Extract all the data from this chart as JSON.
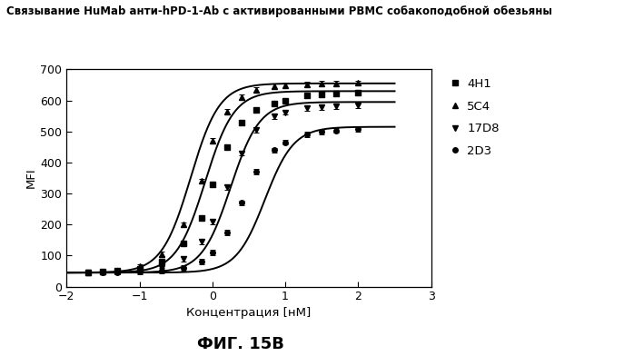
{
  "title": "Связывание HuMab анти-hPD-1-Ab с активированными PBMC собакоподобной обезьяны",
  "xlabel": "Концентрация [нМ]",
  "ylabel": "MFI",
  "subtitle": "ФИГ. 15B",
  "xlim": [
    -2,
    3
  ],
  "ylim": [
    0,
    700
  ],
  "xticks": [
    -2,
    -1,
    0,
    1,
    2,
    3
  ],
  "yticks": [
    0,
    100,
    200,
    300,
    400,
    500,
    600,
    700
  ],
  "series": [
    {
      "label": "4H1",
      "marker": "s",
      "color": "#000000",
      "bottom": 45,
      "top": 630,
      "ec50": -0.1,
      "hill": 2.2
    },
    {
      "label": "5C4",
      "marker": "^",
      "color": "#000000",
      "bottom": 45,
      "top": 655,
      "ec50": -0.3,
      "hill": 2.2
    },
    {
      "label": "17D8",
      "marker": "v",
      "color": "#000000",
      "bottom": 45,
      "top": 595,
      "ec50": 0.25,
      "hill": 2.2
    },
    {
      "label": "2D3",
      "marker": "o",
      "color": "#000000",
      "bottom": 45,
      "top": 515,
      "ec50": 0.72,
      "hill": 2.2
    }
  ],
  "data_points": {
    "4H1": [
      [
        -1.7,
        47
      ],
      [
        -1.5,
        48
      ],
      [
        -1.3,
        50
      ],
      [
        -1.0,
        58
      ],
      [
        -0.7,
        80
      ],
      [
        -0.4,
        140
      ],
      [
        -0.15,
        220
      ],
      [
        0.0,
        330
      ],
      [
        0.2,
        450
      ],
      [
        0.4,
        530
      ],
      [
        0.6,
        570
      ],
      [
        0.85,
        590
      ],
      [
        1.0,
        600
      ],
      [
        1.3,
        615
      ],
      [
        1.5,
        620
      ],
      [
        1.7,
        622
      ],
      [
        2.0,
        625
      ]
    ],
    "5C4": [
      [
        -1.7,
        47
      ],
      [
        -1.5,
        48
      ],
      [
        -1.3,
        52
      ],
      [
        -1.0,
        65
      ],
      [
        -0.7,
        105
      ],
      [
        -0.4,
        200
      ],
      [
        -0.15,
        340
      ],
      [
        0.0,
        470
      ],
      [
        0.2,
        565
      ],
      [
        0.4,
        610
      ],
      [
        0.6,
        635
      ],
      [
        0.85,
        645
      ],
      [
        1.0,
        648
      ],
      [
        1.3,
        652
      ],
      [
        1.5,
        654
      ],
      [
        1.7,
        655
      ],
      [
        2.0,
        656
      ]
    ],
    "17D8": [
      [
        -1.7,
        47
      ],
      [
        -1.5,
        47
      ],
      [
        -1.3,
        48
      ],
      [
        -1.0,
        51
      ],
      [
        -0.7,
        60
      ],
      [
        -0.4,
        90
      ],
      [
        -0.15,
        145
      ],
      [
        0.0,
        210
      ],
      [
        0.2,
        320
      ],
      [
        0.4,
        430
      ],
      [
        0.6,
        505
      ],
      [
        0.85,
        548
      ],
      [
        1.0,
        562
      ],
      [
        1.3,
        574
      ],
      [
        1.5,
        578
      ],
      [
        1.7,
        580
      ],
      [
        2.0,
        583
      ]
    ],
    "2D3": [
      [
        -1.7,
        47
      ],
      [
        -1.5,
        47
      ],
      [
        -1.3,
        47
      ],
      [
        -1.0,
        48
      ],
      [
        -0.7,
        51
      ],
      [
        -0.4,
        60
      ],
      [
        -0.15,
        80
      ],
      [
        0.0,
        110
      ],
      [
        0.2,
        175
      ],
      [
        0.4,
        270
      ],
      [
        0.6,
        370
      ],
      [
        0.85,
        440
      ],
      [
        1.0,
        465
      ],
      [
        1.3,
        490
      ],
      [
        1.5,
        498
      ],
      [
        1.7,
        503
      ],
      [
        2.0,
        508
      ]
    ]
  },
  "background_color": "#ffffff"
}
